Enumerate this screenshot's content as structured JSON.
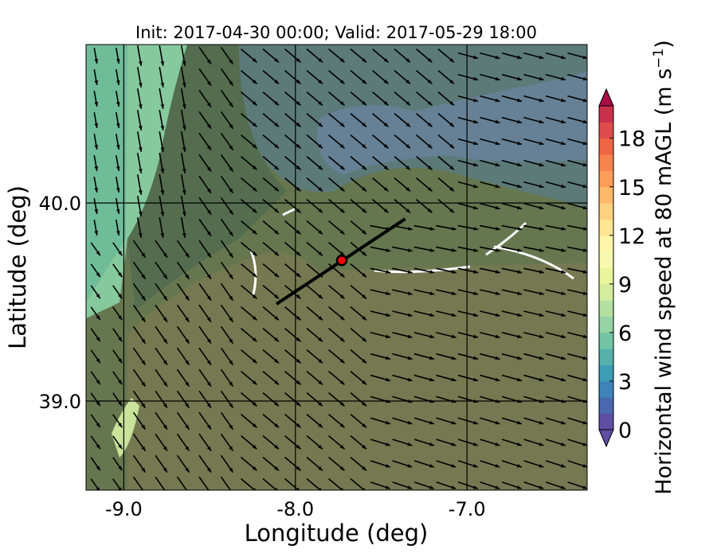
{
  "chart_data": {
    "type": "map",
    "title": "Init: 2017-04-30 00:00; Valid: 2017-05-29 18:00",
    "xlabel": "Longitude (deg)",
    "ylabel": "Latitude (deg)",
    "xlim": [
      -9.22,
      -6.3
    ],
    "ylim": [
      38.55,
      40.8
    ],
    "xticks": [
      -9.0,
      -8.0,
      -7.0
    ],
    "xtick_labels": [
      "-9.0",
      "-8.0",
      "-7.0"
    ],
    "yticks": [
      39.0,
      40.0
    ],
    "ytick_labels": [
      "39.0",
      "40.0"
    ],
    "grid": true,
    "field": "Horizontal wind speed at 80 mAGL",
    "wind_vectors": true,
    "marker": {
      "lon": -7.73,
      "lat": 39.71,
      "color": "#ff0000"
    },
    "transect": {
      "start": [
        -8.11,
        39.49
      ],
      "end": [
        -7.36,
        39.92
      ],
      "color": "#000000"
    },
    "colorbar": {
      "label_main": "Horizontal wind speed at 80 mAGL (m s",
      "label_sup": "−1",
      "label_end": ")",
      "min": 0,
      "max": 20,
      "step": 1,
      "extend": "both",
      "colormap": "Spectral_r",
      "ticks": [
        0,
        3,
        6,
        9,
        12,
        15,
        18
      ],
      "tick_labels": [
        "0",
        "3",
        "6",
        "9",
        "12",
        "15",
        "18"
      ],
      "colors": [
        "#5e4fa2",
        "#4a68ae",
        "#3e84b8",
        "#3d9db5",
        "#56b1ab",
        "#74c5a5",
        "#95d2a4",
        "#b5dfa0",
        "#d3ec9d",
        "#e9f59b",
        "#f7faae",
        "#fef5a8",
        "#fee592",
        "#fdd17f",
        "#fdb869",
        "#fc9e5a",
        "#f7834e",
        "#ee6644",
        "#de4d4b",
        "#c8304c",
        "#a80e48"
      ]
    }
  }
}
